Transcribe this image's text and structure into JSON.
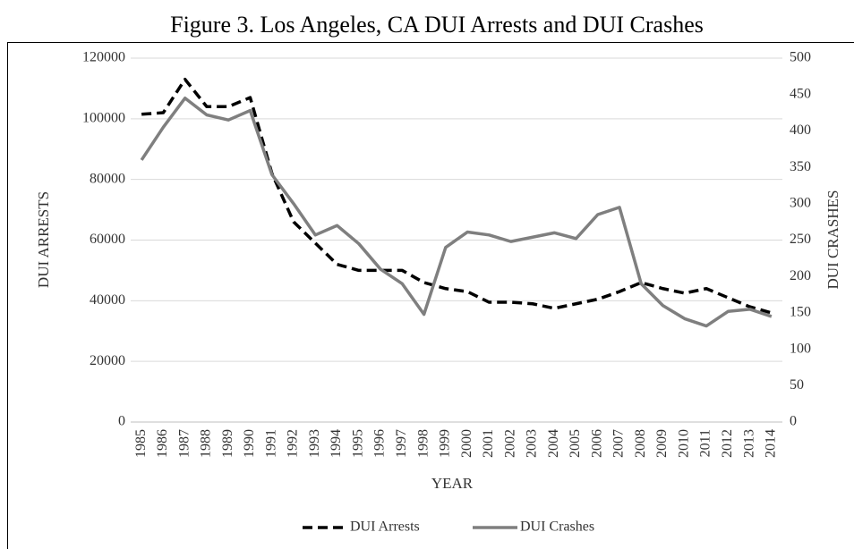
{
  "chart_data": {
    "type": "line",
    "title": "Figure 3. Los Angeles, CA DUI Arrests and DUI Crashes",
    "x_label": "YEAR",
    "y_label": "DUI ARRESTS",
    "y2_label": "DUI CRASHES",
    "categories": [
      "1985",
      "1986",
      "1987",
      "1988",
      "1989",
      "1990",
      "1991",
      "1992",
      "1993",
      "1994",
      "1995",
      "1996",
      "1997",
      "1998",
      "1999",
      "2000",
      "2001",
      "2002",
      "2003",
      "2004",
      "2005",
      "2006",
      "2007",
      "2008",
      "2009",
      "2010",
      "2011",
      "2012",
      "2013",
      "2014"
    ],
    "series": [
      {
        "name": "DUI Arrests",
        "color": "#000000",
        "dashed": true,
        "values": [
          101500,
          102000,
          113000,
          104000,
          104000,
          107000,
          82000,
          66000,
          59000,
          52000,
          50000,
          50000,
          50000,
          46000,
          44000,
          43000,
          39500,
          39500,
          39000,
          37500,
          39000,
          40500,
          43000,
          46000,
          44000,
          42500,
          44000,
          41000,
          38000,
          36000
        ]
      },
      {
        "name": "DUI Crashes",
        "color": "#7f7f7f",
        "dashed": false,
        "axis": "y2",
        "values": [
          360,
          405,
          445,
          422,
          415,
          428,
          340,
          300,
          257,
          270,
          245,
          210,
          190,
          148,
          240,
          261,
          257,
          248,
          254,
          260,
          252,
          285,
          295,
          190,
          160,
          142,
          132,
          152,
          155,
          145
        ]
      }
    ],
    "ylim": [
      0,
      120000
    ],
    "yticks": [
      0,
      20000,
      40000,
      60000,
      80000,
      100000,
      120000
    ],
    "y2lim": [
      0,
      500
    ],
    "y2ticks": [
      0,
      50,
      100,
      150,
      200,
      250,
      300,
      350,
      400,
      450,
      500
    ],
    "grid": true,
    "legend": "bottom"
  }
}
